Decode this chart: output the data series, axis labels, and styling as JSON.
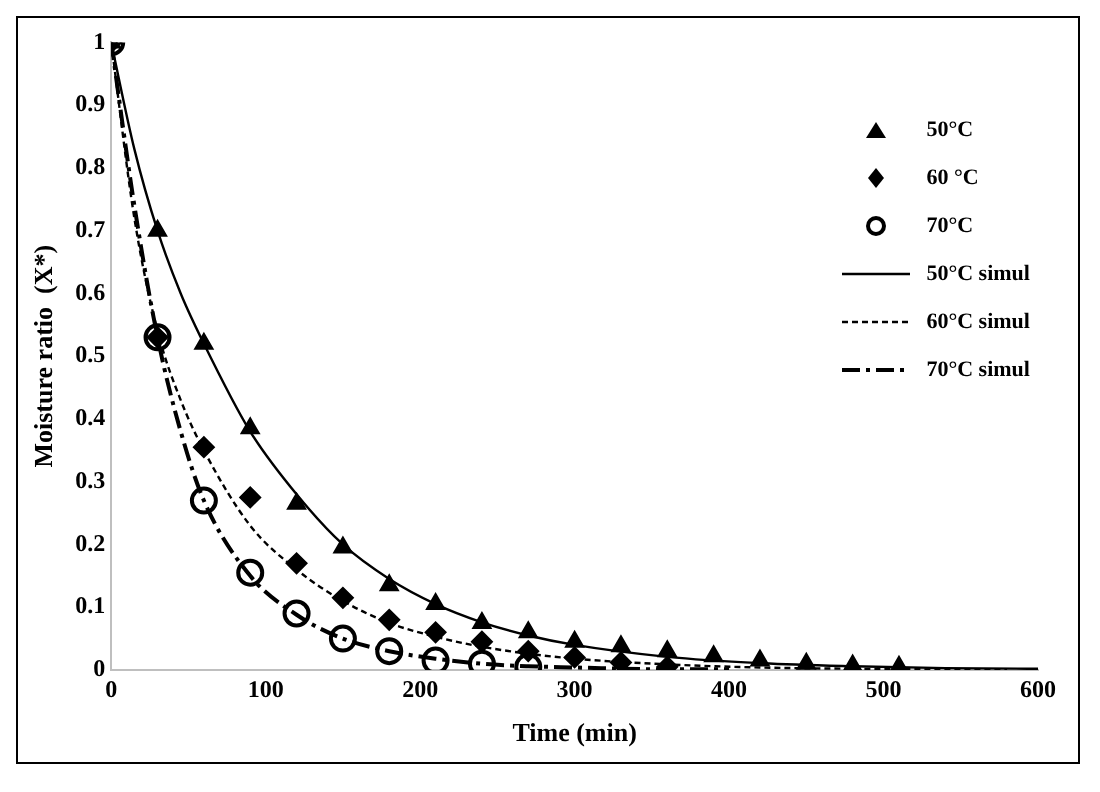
{
  "chart_data": {
    "type": "scatter",
    "xlabel": "Time (min)",
    "ylabel": "Moisture ratio  (X*)",
    "xlim": [
      0,
      600
    ],
    "xticks": [
      0,
      100,
      200,
      300,
      400,
      500,
      600
    ],
    "ylim": [
      0,
      1
    ],
    "yticks": [
      0,
      0.1,
      0.2,
      0.3,
      0.4,
      0.5,
      0.6,
      0.7,
      0.8,
      0.9,
      1
    ],
    "grid": false,
    "legend": "top right",
    "series": [
      {
        "name": "50°C",
        "marker": "triangle",
        "color": "#000000",
        "x": [
          0,
          30,
          60,
          90,
          120,
          150,
          180,
          210,
          240,
          270,
          300,
          330,
          360,
          390,
          420,
          450,
          480,
          510
        ],
        "values": [
          1,
          0.7,
          0.52,
          0.385,
          0.265,
          0.195,
          0.135,
          0.105,
          0.075,
          0.06,
          0.045,
          0.038,
          0.03,
          0.022,
          0.015,
          0.01,
          0.007,
          0.005
        ]
      },
      {
        "name": "60 °C",
        "marker": "diamond",
        "color": "#000000",
        "x": [
          0,
          30,
          60,
          90,
          120,
          150,
          180,
          210,
          240,
          270,
          300,
          330,
          360
        ],
        "values": [
          1,
          0.53,
          0.355,
          0.275,
          0.17,
          0.115,
          0.08,
          0.06,
          0.045,
          0.03,
          0.02,
          0.012,
          0.005
        ]
      },
      {
        "name": "70°C",
        "marker": "circle",
        "color": "#000000",
        "x": [
          0,
          30,
          60,
          90,
          120,
          150,
          180,
          210,
          240,
          270
        ],
        "values": [
          1,
          0.53,
          0.27,
          0.155,
          0.09,
          0.05,
          0.03,
          0.015,
          0.01,
          0.005
        ]
      },
      {
        "name": "50°C simul",
        "type": "line",
        "line_style": "solid",
        "marker": "none",
        "color": "#000000",
        "x": [
          0,
          15,
          30,
          45,
          60,
          90,
          120,
          150,
          180,
          210,
          240,
          270,
          300,
          360,
          420,
          480,
          540,
          600
        ],
        "values": [
          1,
          0.83,
          0.7,
          0.6,
          0.52,
          0.38,
          0.28,
          0.2,
          0.145,
          0.105,
          0.076,
          0.055,
          0.04,
          0.021,
          0.011,
          0.006,
          0.003,
          0.002
        ]
      },
      {
        "name": "60°C simul",
        "type": "line",
        "line_style": "dotted",
        "marker": "none",
        "color": "#000000",
        "x": [
          0,
          15,
          30,
          45,
          60,
          90,
          120,
          150,
          180,
          210,
          240,
          270,
          300,
          360,
          420,
          480,
          540,
          580
        ],
        "values": [
          1,
          0.72,
          0.54,
          0.43,
          0.35,
          0.23,
          0.16,
          0.11,
          0.075,
          0.053,
          0.037,
          0.026,
          0.018,
          0.009,
          0.004,
          0.002,
          0.001,
          0.001
        ]
      },
      {
        "name": "70°C simul",
        "type": "line",
        "line_style": "dashed",
        "marker": "none",
        "color": "#000000",
        "x": [
          0,
          15,
          30,
          45,
          60,
          90,
          120,
          150,
          180,
          210,
          240,
          270,
          300,
          360,
          400
        ],
        "values": [
          1,
          0.74,
          0.53,
          0.38,
          0.27,
          0.15,
          0.088,
          0.05,
          0.03,
          0.018,
          0.01,
          0.006,
          0.004,
          0.001,
          0.001
        ]
      }
    ]
  }
}
